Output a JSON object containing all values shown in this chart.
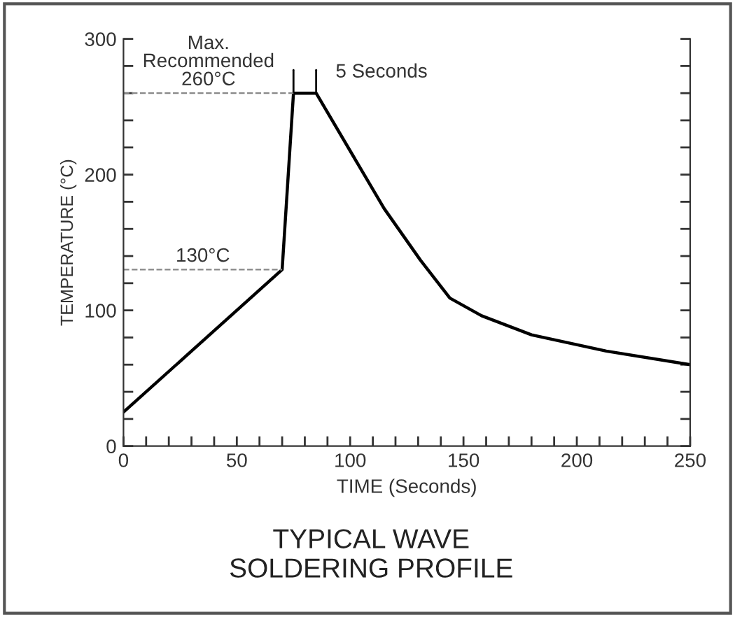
{
  "chart_data": {
    "type": "line",
    "title": "TYPICAL WAVE\nSOLDERING PROFILE",
    "xlabel": "TIME (Seconds)",
    "ylabel": "TEMPERATURE (°C)",
    "x": [
      0,
      70,
      75,
      85,
      115,
      131,
      144,
      158,
      180,
      213,
      250
    ],
    "series": [
      {
        "color": "#000000",
        "values": [
          25,
          130,
          260,
          260,
          175,
          137,
          109,
          96,
          82,
          70,
          60
        ]
      }
    ],
    "xlim": [
      0,
      250
    ],
    "ylim": [
      0,
      300
    ],
    "xticks": [
      0,
      {
        "value": 10,
        "label": null
      },
      {
        "value": 20,
        "label": null
      },
      {
        "value": 30,
        "label": null
      },
      {
        "value": 40,
        "label": null
      },
      50,
      {
        "value": 60,
        "label": null
      },
      {
        "value": 70,
        "label": null
      },
      {
        "value": 80,
        "label": null
      },
      {
        "value": 90,
        "label": null
      },
      100,
      {
        "value": 110,
        "label": null
      },
      {
        "value": 120,
        "label": null
      },
      {
        "value": 130,
        "label": null
      },
      {
        "value": 140,
        "label": null
      },
      150,
      {
        "value": 160,
        "label": null
      },
      {
        "value": 170,
        "label": null
      },
      {
        "value": 180,
        "label": null
      },
      {
        "value": 190,
        "label": null
      },
      200,
      {
        "value": 210,
        "label": null
      },
      {
        "value": 220,
        "label": null
      },
      {
        "value": 230,
        "label": null
      },
      {
        "value": 240,
        "label": null
      },
      250
    ],
    "yticks": [
      0,
      {
        "value": 20,
        "label": null
      },
      {
        "value": 40,
        "label": null
      },
      {
        "value": 60,
        "label": null
      },
      {
        "value": 80,
        "label": null
      },
      100,
      {
        "value": 120,
        "label": null
      },
      {
        "value": 140,
        "label": null
      },
      {
        "value": 160,
        "label": null
      },
      {
        "value": 180,
        "label": null
      },
      200,
      {
        "value": 220,
        "label": null
      },
      {
        "value": 240,
        "label": null
      },
      {
        "value": 260,
        "label": null
      },
      {
        "value": 280,
        "label": null
      },
      300
    ],
    "ref_lines": [
      {
        "axis": "y",
        "value": 260,
        "label": "Max.\nRecommended\n260°C",
        "line_style": "dashed",
        "color": "#888888"
      },
      {
        "axis": "y",
        "value": 130,
        "label": "130°C",
        "line_style": "dashed",
        "color": "#888888"
      }
    ],
    "annotations": [
      {
        "text": "5 Seconds",
        "x": 85,
        "y": 260
      }
    ],
    "grid": false,
    "legend": false,
    "line_style": "solid",
    "marker": "none"
  }
}
